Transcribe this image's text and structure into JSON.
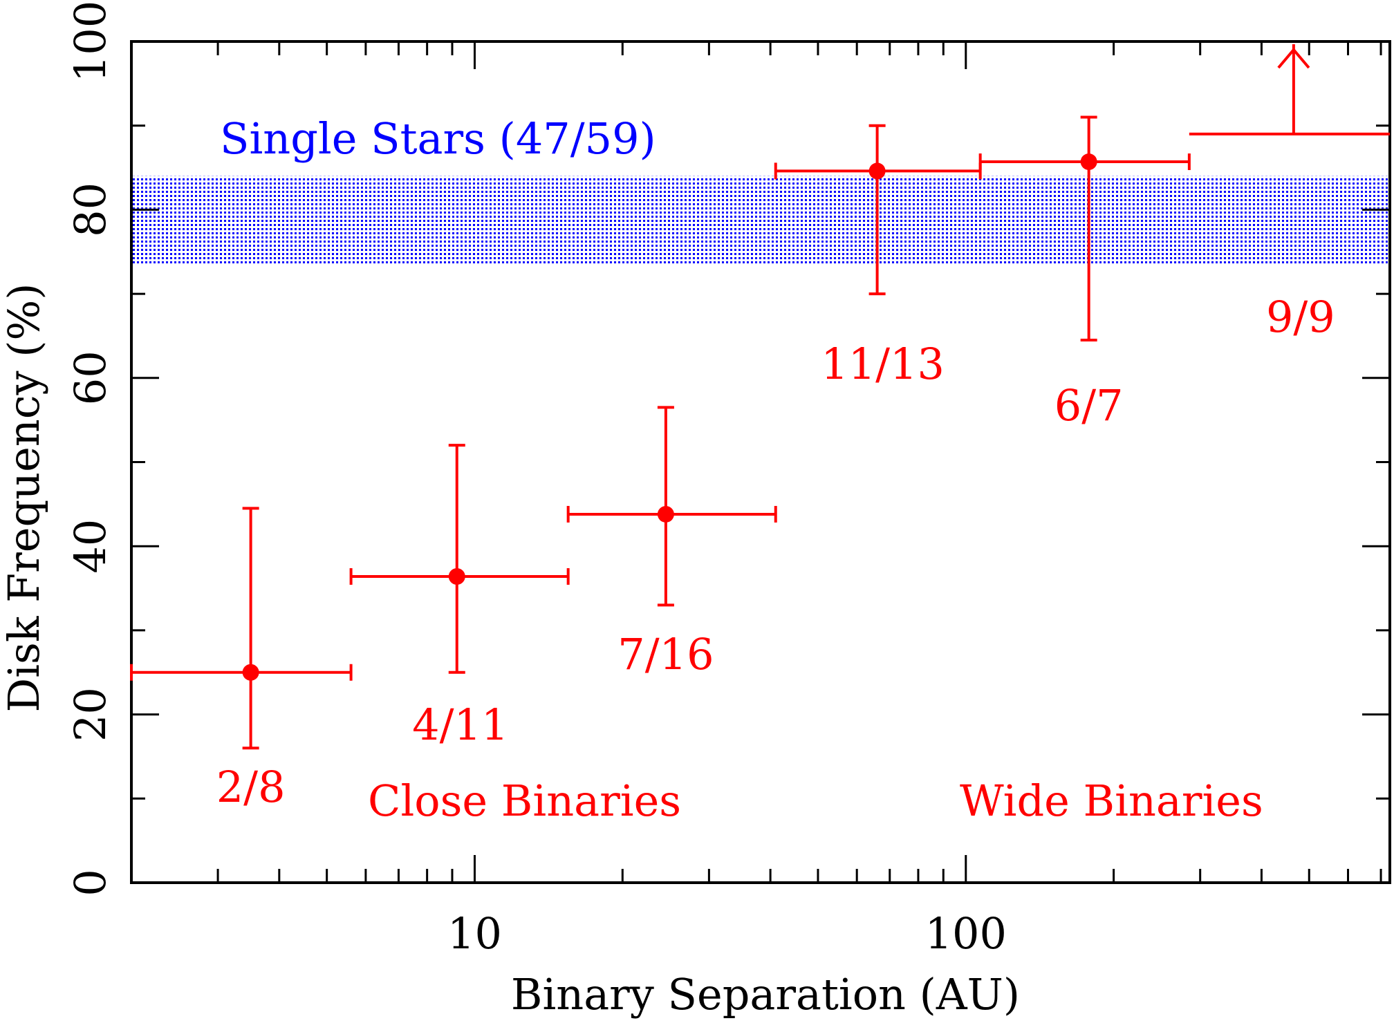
{
  "chart_data": {
    "type": "scatter",
    "xscale": "log",
    "xlim": [
      2,
      730
    ],
    "ylim": [
      0,
      100
    ],
    "xlabel": "Binary Separation (AU)",
    "ylabel": "Disk Frequency (%)",
    "xtick_labels": [
      {
        "value": 10,
        "label": "10"
      },
      {
        "value": 100,
        "label": "100"
      }
    ],
    "ytick_labels": [
      {
        "value": 0,
        "label": "0"
      },
      {
        "value": 20,
        "label": "20"
      },
      {
        "value": 40,
        "label": "40"
      },
      {
        "value": 60,
        "label": "60"
      },
      {
        "value": 80,
        "label": "80"
      },
      {
        "value": 100,
        "label": "100"
      }
    ],
    "colors": {
      "points": "#ff0000",
      "band": "#0000ff",
      "axes": "#000000"
    },
    "single_stars_band": {
      "ymin": 73.5,
      "ymax": 84,
      "label": "Single Stars (47/59)"
    },
    "points": [
      {
        "x": 3.5,
        "y": 25,
        "xmin": 2,
        "xmax": 5.6,
        "ymin": 16,
        "ymax": 44.5,
        "label": "2/8"
      },
      {
        "x": 9.2,
        "y": 36.4,
        "xmin": 5.6,
        "xmax": 15.5,
        "ymin": 25,
        "ymax": 52,
        "label": "4/11"
      },
      {
        "x": 24.5,
        "y": 43.8,
        "xmin": 15.5,
        "xmax": 41,
        "ymin": 33,
        "ymax": 56.5,
        "label": "7/16"
      },
      {
        "x": 66,
        "y": 84.6,
        "xmin": 41,
        "xmax": 107,
        "ymin": 70,
        "ymax": 90,
        "label": "11/13"
      },
      {
        "x": 178,
        "y": 85.7,
        "xmin": 107,
        "xmax": 285,
        "ymin": 64.5,
        "ymax": 91,
        "label": "6/7"
      }
    ],
    "lower_limit": {
      "y": 89,
      "xmin": 285,
      "xmax": 730,
      "x_arrow": 465,
      "label": "9/9"
    },
    "annotations": {
      "close_binaries": "Close Binaries",
      "wide_binaries": "Wide Binaries"
    }
  }
}
